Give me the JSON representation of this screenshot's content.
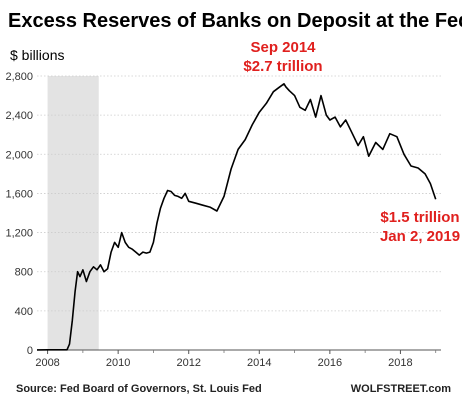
{
  "chart_data": {
    "type": "line",
    "title": "Excess Reserves of Banks on Deposit at the Fed",
    "ylabel": "$ billions",
    "xlabel": "",
    "ylim": [
      0,
      2800
    ],
    "xlim": [
      2007.7,
      2019.15
    ],
    "x_ticks": [
      "2008",
      "2010",
      "2012",
      "2014",
      "2016",
      "2018"
    ],
    "y_ticks": [
      "0",
      "400",
      "800",
      "1,200",
      "1,600",
      "2,000",
      "2,400",
      "2,800"
    ],
    "y_tick_values": [
      0,
      400,
      800,
      1200,
      1600,
      2000,
      2400,
      2800
    ],
    "x_tick_values": [
      2008,
      2010,
      2012,
      2014,
      2016,
      2018
    ],
    "grid": "horizontal",
    "shaded_period": [
      2008.0,
      2009.45
    ],
    "line_color": "#000000",
    "annotation_color": "#e0201e",
    "annotations": [
      {
        "lines": [
          "Sep 2014",
          "$2.7 trillion"
        ]
      },
      {
        "lines": [
          "$1.5 trillion",
          "Jan 2, 2019"
        ]
      }
    ],
    "source": "Source: Fed Board of Governors, St. Louis Fed",
    "credit": "WOLFSTREET.com",
    "series": [
      {
        "x": [
          2007.7,
          2008.0,
          2008.3,
          2008.55,
          2008.62,
          2008.7,
          2008.78,
          2008.85,
          2008.92,
          2009.0,
          2009.1,
          2009.2,
          2009.3,
          2009.4,
          2009.5,
          2009.6,
          2009.7,
          2009.8,
          2009.9,
          2010.0,
          2010.1,
          2010.2,
          2010.3,
          2010.4,
          2010.5,
          2010.6,
          2010.7,
          2010.8,
          2010.9,
          2011.0,
          2011.1,
          2011.2,
          2011.3,
          2011.4,
          2011.5,
          2011.6,
          2011.7,
          2011.8,
          2011.9,
          2012.0,
          2012.2,
          2012.4,
          2012.6,
          2012.8,
          2013.0,
          2013.2,
          2013.4,
          2013.6,
          2013.8,
          2014.0,
          2014.2,
          2014.4,
          2014.55,
          2014.7,
          2014.75,
          2014.85,
          2015.0,
          2015.15,
          2015.3,
          2015.45,
          2015.6,
          2015.75,
          2015.9,
          2016.0,
          2016.15,
          2016.3,
          2016.45,
          2016.6,
          2016.8,
          2016.95,
          2017.1,
          2017.3,
          2017.5,
          2017.7,
          2017.9,
          2018.1,
          2018.3,
          2018.5,
          2018.7,
          2018.85,
          2019.0
        ],
        "y": [
          1.5,
          2,
          2,
          2,
          60,
          300,
          600,
          800,
          750,
          820,
          700,
          800,
          850,
          820,
          870,
          800,
          830,
          1000,
          1100,
          1050,
          1200,
          1100,
          1050,
          1030,
          1000,
          970,
          1000,
          990,
          1000,
          1100,
          1300,
          1450,
          1550,
          1630,
          1620,
          1580,
          1570,
          1550,
          1600,
          1520,
          1500,
          1480,
          1460,
          1420,
          1570,
          1850,
          2050,
          2150,
          2300,
          2430,
          2520,
          2640,
          2680,
          2720,
          2690,
          2650,
          2600,
          2480,
          2450,
          2560,
          2380,
          2600,
          2400,
          2350,
          2380,
          2280,
          2350,
          2240,
          2090,
          2180,
          1980,
          2120,
          2050,
          2210,
          2180,
          2000,
          1880,
          1860,
          1800,
          1700,
          1540
        ]
      }
    ]
  }
}
